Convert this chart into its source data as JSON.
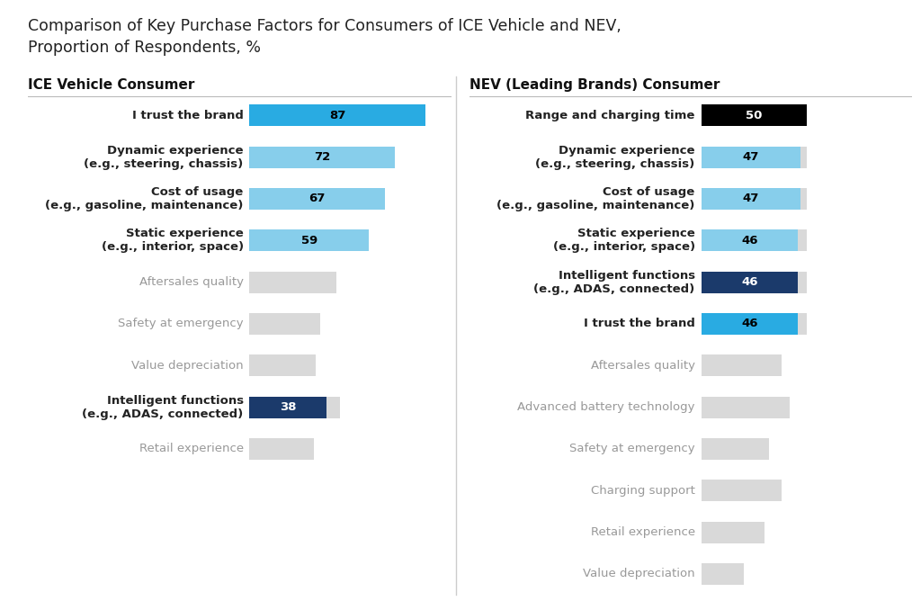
{
  "title": "Comparison of Key Purchase Factors for Consumers of ICE Vehicle and NEV,\nProportion of Respondents, %",
  "title_fontsize": 12.5,
  "background_color": "#ffffff",
  "ice_header": "ICE Vehicle Consumer",
  "nev_header": "NEV (Leading Brands) Consumer",
  "ice_categories": [
    "I trust the brand",
    "Dynamic experience\n(e.g., steering, chassis)",
    "Cost of usage\n(e.g., gasoline, maintenance)",
    "Static experience\n(e.g., interior, space)",
    "Aftersales quality",
    "Safety at emergency",
    "Value depreciation",
    "Intelligent functions\n(e.g., ADAS, connected)",
    "Retail experience"
  ],
  "ice_values": [
    87,
    72,
    67,
    59,
    null,
    null,
    null,
    38,
    null
  ],
  "ice_bar_colors": [
    "#29ABE2",
    "#87CEEB",
    "#87CEEB",
    "#87CEEB",
    null,
    null,
    null,
    "#1B3A6B",
    null
  ],
  "ice_gray_widths": [
    45,
    45,
    45,
    45,
    43,
    35,
    33,
    45,
    32
  ],
  "ice_bold": [
    true,
    true,
    true,
    true,
    false,
    false,
    false,
    true,
    false
  ],
  "nev_categories": [
    "Range and charging time",
    "Dynamic experience\n(e.g., steering, chassis)",
    "Cost of usage\n(e.g., gasoline, maintenance)",
    "Static experience\n(e.g., interior, space)",
    "Intelligent functions\n(e.g., ADAS, connected)",
    "I trust the brand",
    "Aftersales quality",
    "Advanced battery technology",
    "Safety at emergency",
    "Charging support",
    "Retail experience",
    "Value depreciation"
  ],
  "nev_values": [
    50,
    47,
    47,
    46,
    46,
    46,
    null,
    null,
    null,
    null,
    null,
    null
  ],
  "nev_bar_colors": [
    "#000000",
    "#87CEEB",
    "#87CEEB",
    "#87CEEB",
    "#1B3A6B",
    "#29ABE2",
    null,
    null,
    null,
    null,
    null,
    null
  ],
  "nev_gray_widths": [
    50,
    50,
    50,
    50,
    50,
    50,
    38,
    42,
    32,
    38,
    30,
    20
  ],
  "nev_bold": [
    true,
    true,
    true,
    true,
    true,
    true,
    false,
    false,
    false,
    false,
    false,
    false
  ],
  "bar_height": 0.52,
  "label_fontsize": 9.5,
  "header_fontsize": 11,
  "value_fontsize": 9.5,
  "gray_color": "#D9D9D9",
  "bold_label_color": "#222222",
  "light_label_color": "#999999"
}
